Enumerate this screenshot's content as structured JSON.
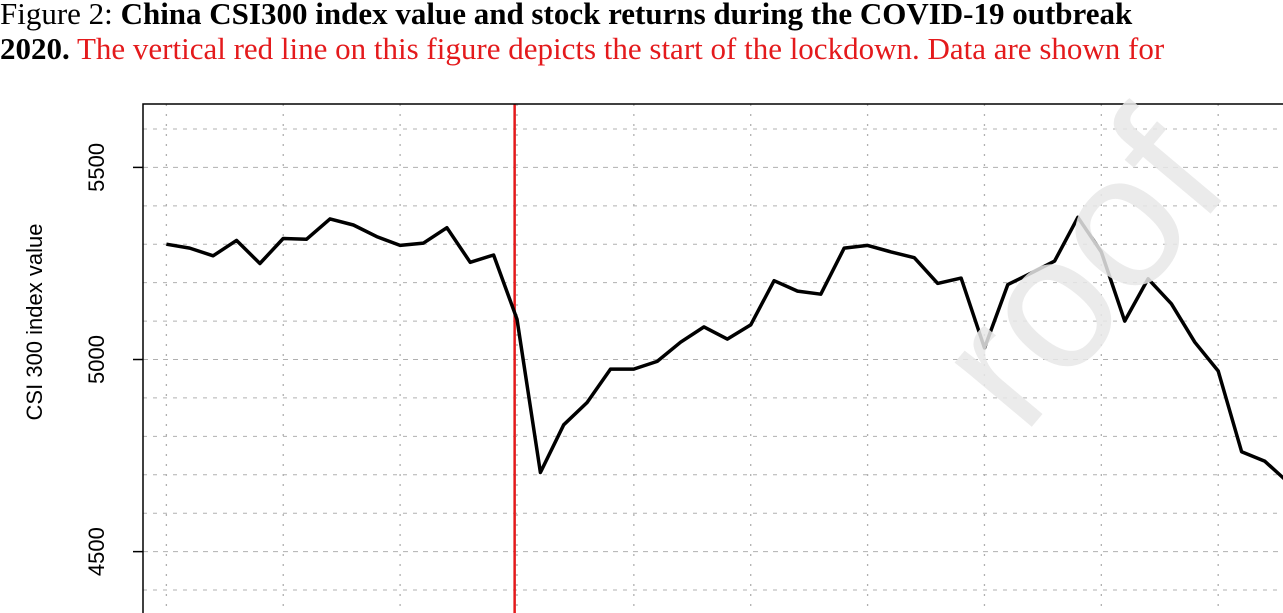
{
  "caption": {
    "line1_prefix": "Figure 2: ",
    "line1_bold": "China CSI300 index value and stock returns during the COVID-19 outbreak",
    "line2_bold": "2020.",
    "line2_red": " The vertical red line on this figure depicts the start of the lockdown. Data are shown for"
  },
  "watermark": "roof",
  "colors": {
    "series": "#000000",
    "lockdown_line": "#e41a1c",
    "grid": "#b0b0b0",
    "caption_red": "#e41a1c"
  },
  "chart_data": {
    "type": "line",
    "ylabel": "CSI 300 index value",
    "ylim": [
      4270,
      5665
    ],
    "yticks": [
      4500,
      5000,
      5500
    ],
    "xlim": [
      -1,
      48.5
    ],
    "grid": true,
    "vertical_marker_x": 14.9,
    "series": [
      {
        "x": [
          0,
          1,
          2,
          3,
          4,
          5,
          6,
          7,
          8,
          9,
          10,
          11,
          12,
          13,
          14,
          15,
          16,
          17,
          18,
          19,
          20,
          21,
          22,
          23,
          24,
          25,
          26,
          27,
          28,
          29,
          30,
          31,
          32,
          33,
          34,
          35,
          36,
          37,
          38,
          39,
          40,
          41,
          42,
          43,
          44,
          45,
          46,
          47,
          48
        ],
        "values": [
          5300,
          5290,
          5270,
          5310,
          5250,
          5315,
          5313,
          5366,
          5350,
          5320,
          5297,
          5303,
          5343,
          5253,
          5272,
          5105,
          4706,
          4830,
          4888,
          4975,
          4975,
          4995,
          5045,
          5085,
          5053,
          5090,
          5205,
          5178,
          5170,
          5290,
          5297,
          5280,
          5265,
          5198,
          5212,
          5030,
          5195,
          5225,
          5256,
          5370,
          5280,
          5100,
          5210,
          5145,
          5045,
          4970,
          4760,
          4735,
          4680
        ]
      }
    ]
  }
}
